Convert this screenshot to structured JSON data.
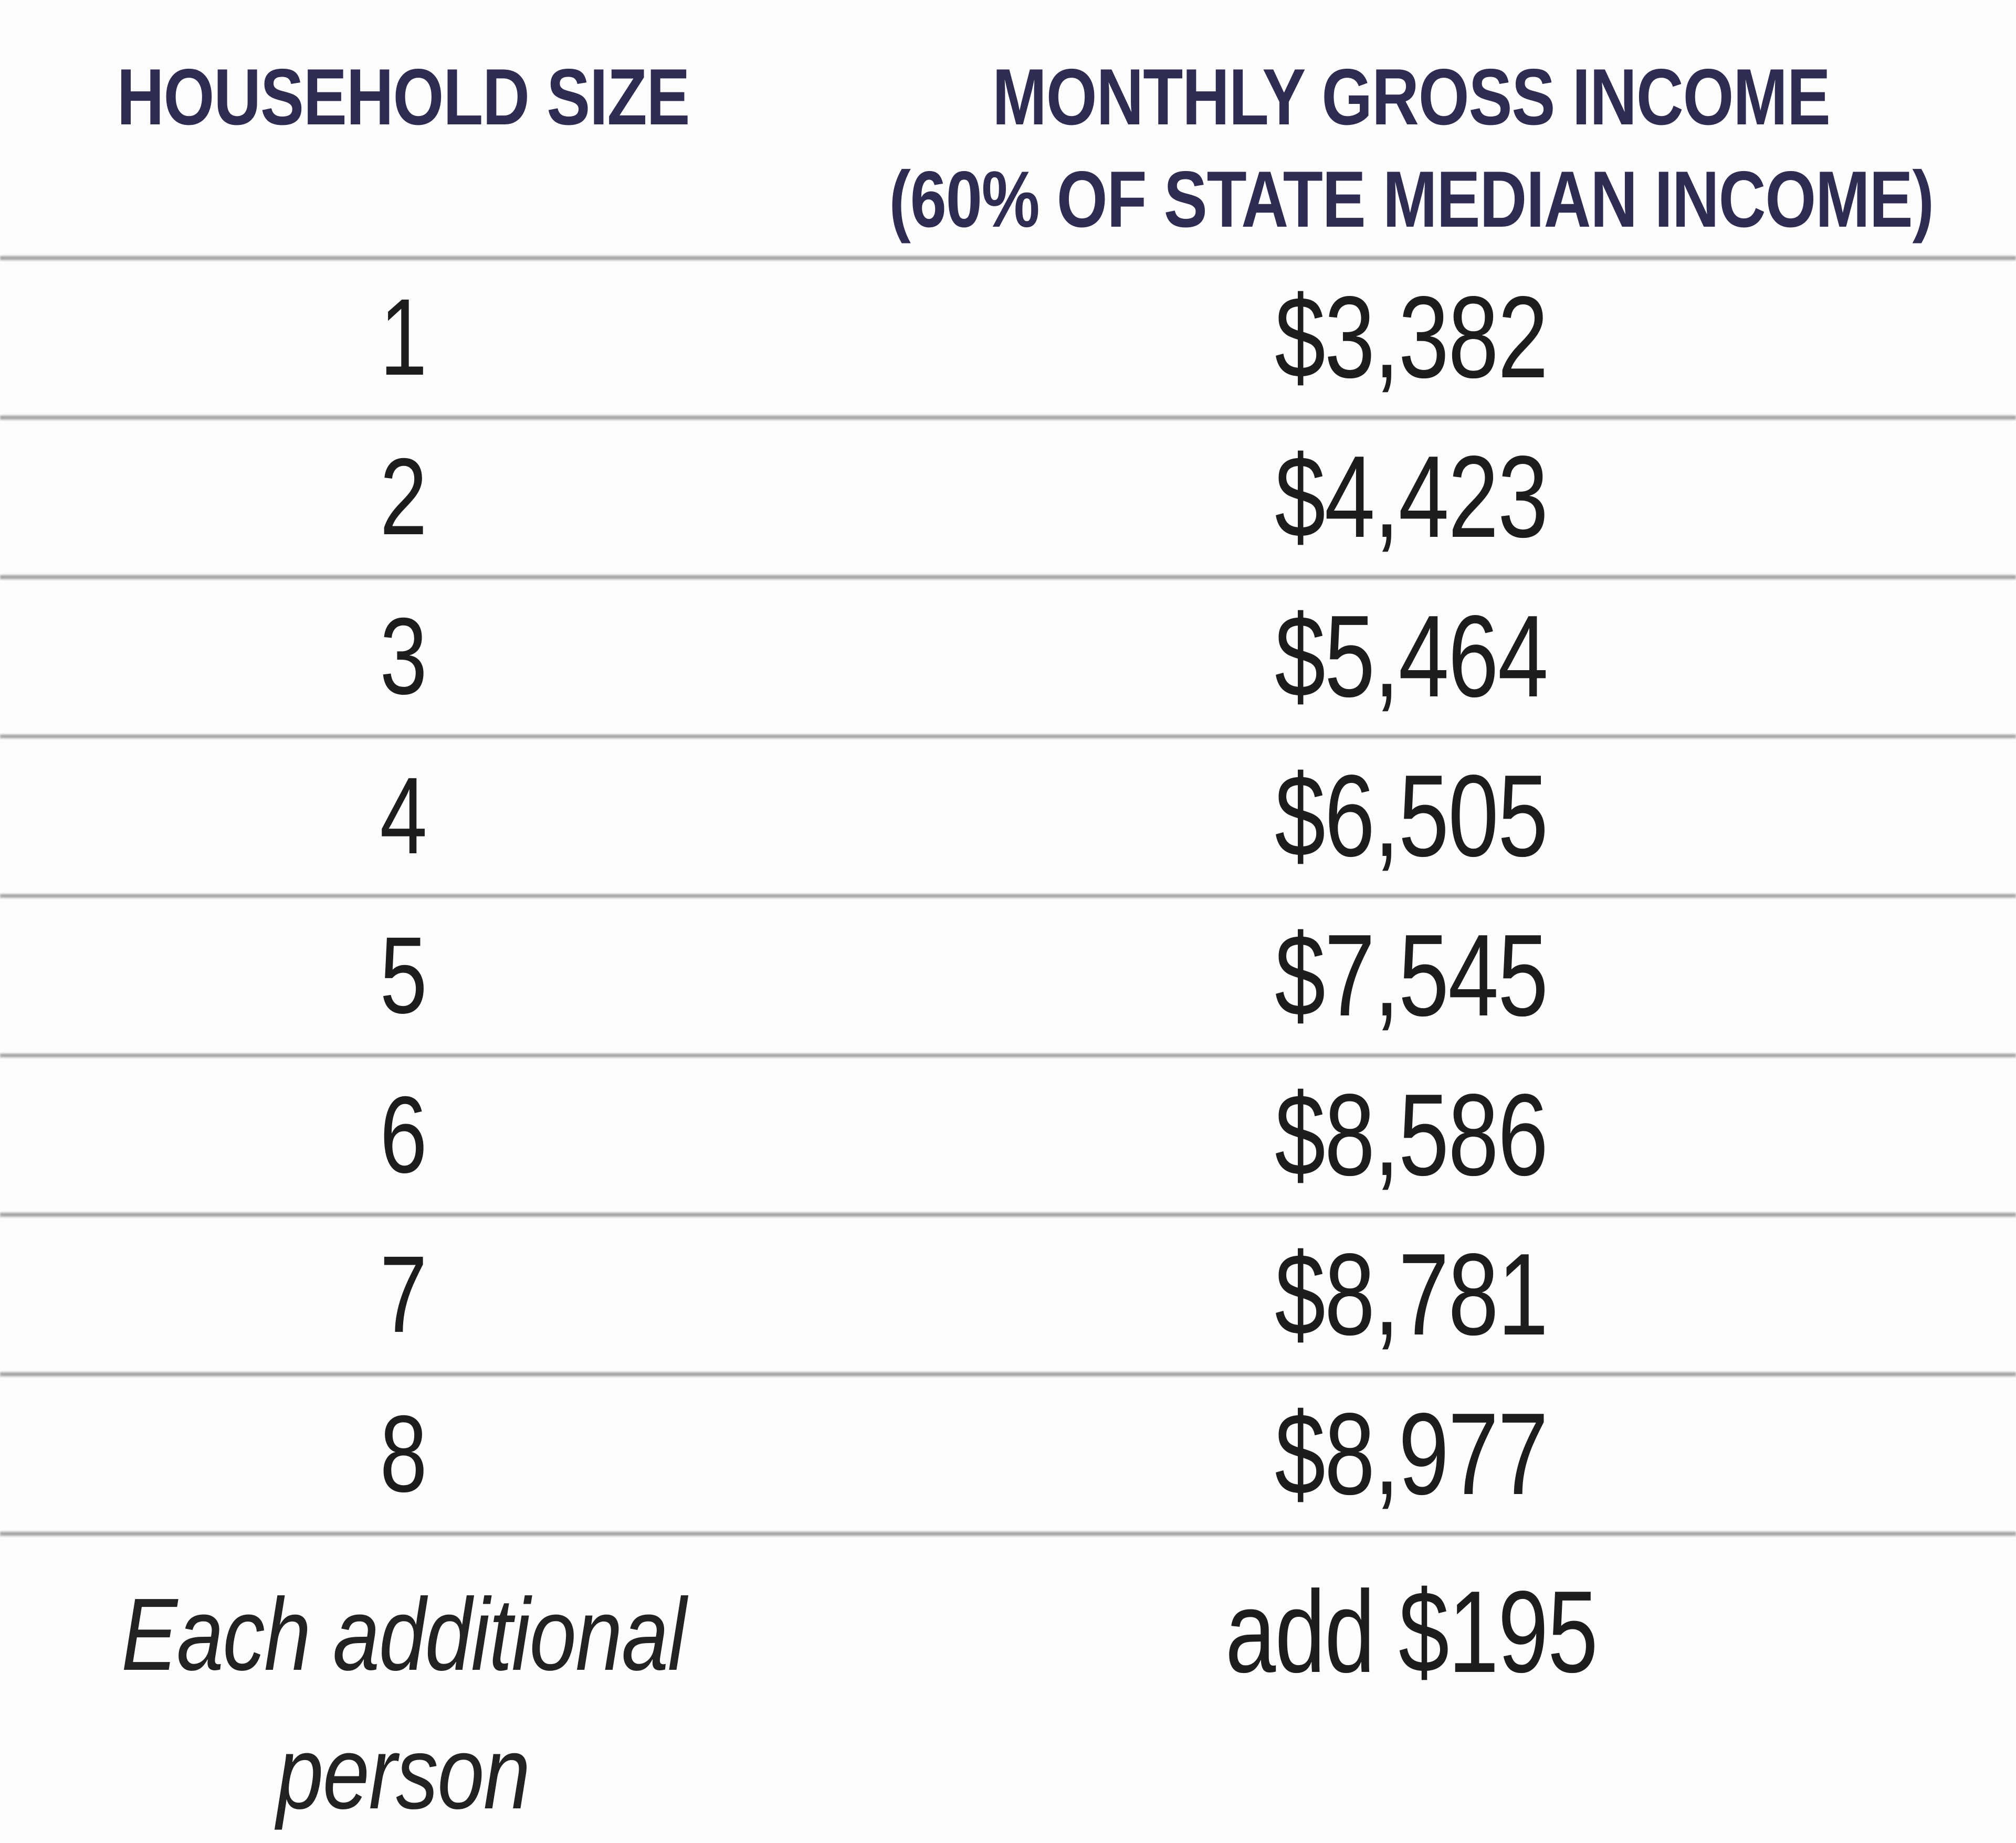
{
  "table": {
    "header": {
      "household_size": "HOUSEHOLD SIZE",
      "income_line1": "MONTHLY GROSS INCOME",
      "income_line2": "(60% OF STATE MEDIAN INCOME)"
    },
    "rows": [
      {
        "size": "1",
        "income": "$3,382"
      },
      {
        "size": "2",
        "income": "$4,423"
      },
      {
        "size": "3",
        "income": "$5,464"
      },
      {
        "size": "4",
        "income": "$6,505"
      },
      {
        "size": "5",
        "income": "$7,545"
      },
      {
        "size": "6",
        "income": "$8,586"
      },
      {
        "size": "7",
        "income": "$8,781"
      },
      {
        "size": "8",
        "income": "$8,977"
      }
    ],
    "footer_row": {
      "label_line1": "Each additional",
      "label_line2": "person",
      "income": "add $195"
    },
    "colors": {
      "header_text": "#2e2c52",
      "body_text": "#1d1d1d",
      "divider": "#a6a6a6",
      "background": "#fdfdfd"
    }
  }
}
